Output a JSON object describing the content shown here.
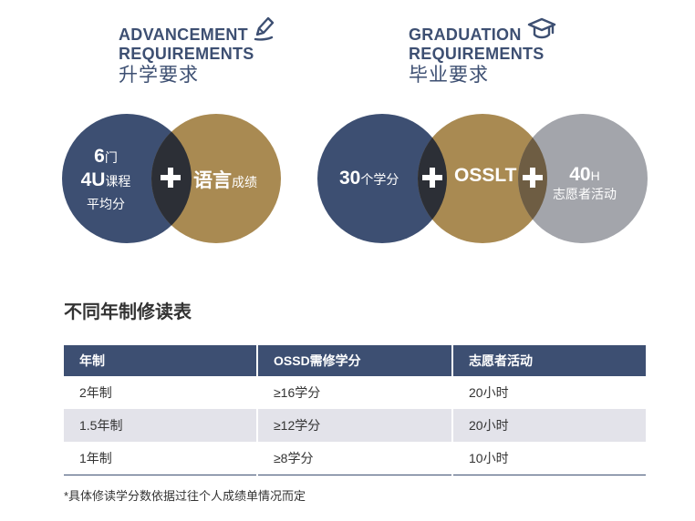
{
  "advancement": {
    "title_line1": "ADVANCEMENT",
    "title_line2": "REQUIREMENTS",
    "title_cn": "升学要求",
    "icon": "pen-icon",
    "circle_left": {
      "line1_num": "6",
      "line1_unit": "门",
      "line2_num": "4U",
      "line2_unit": "课程",
      "line3": "平均分"
    },
    "circle_right": {
      "main": "语言",
      "sub": "成绩"
    }
  },
  "graduation": {
    "title_line1": "GRADUATION",
    "title_line2": "REQUIREMENTS",
    "title_cn": "毕业要求",
    "icon": "graduation-cap-icon",
    "circle_left": {
      "num": "30",
      "unit": "个学分"
    },
    "circle_middle": {
      "main": "OSSLT"
    },
    "circle_right": {
      "num": "40",
      "unit": "H",
      "line2": "志愿者活动"
    }
  },
  "colors": {
    "navy": "#3d4f72",
    "gold": "#a98a52",
    "grey": "#a3a5ab",
    "row_alt": "#e3e3ea"
  },
  "table": {
    "title": "不同年制修读表",
    "headers": [
      "年制",
      "OSSD需修学分",
      "志愿者活动"
    ],
    "rows": [
      [
        "2年制",
        "≥16学分",
        "20小时"
      ],
      [
        "1.5年制",
        "≥12学分",
        "20小时"
      ],
      [
        "1年制",
        "≥8学分",
        "10小时"
      ]
    ]
  },
  "footnote": "*具体修读学分数依据过往个人成绩单情况而定"
}
